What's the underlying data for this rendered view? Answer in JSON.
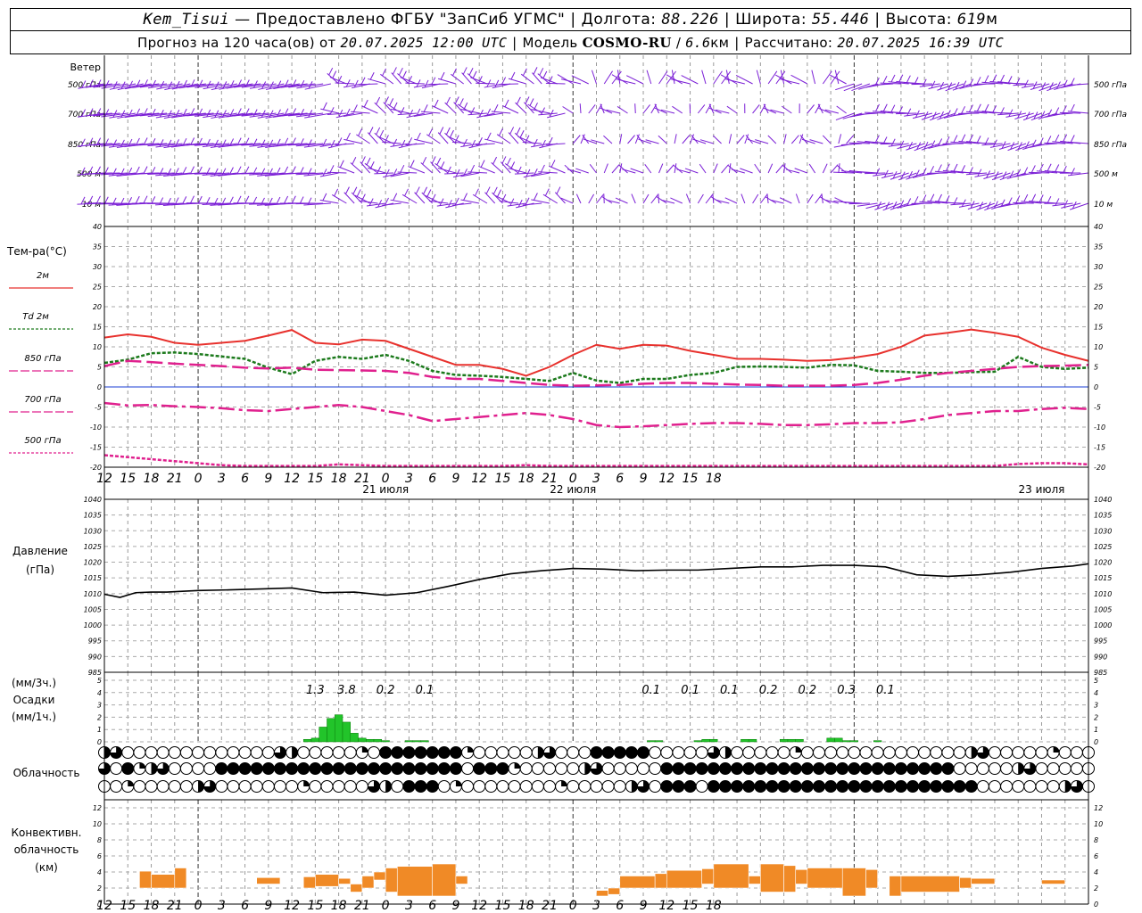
{
  "header": {
    "station": "Kem_Tisui",
    "provided": "Предоставлено ФГБУ \"ЗапСиб УГМС\"",
    "lon_label": "Долгота:",
    "lon": "88.226",
    "lat_label": "Широта:",
    "lat": "55.446",
    "alt_label": "Высота:",
    "alt": "619",
    "alt_unit": "м",
    "forecast_label": "Прогноз на 120 часа(ов) от",
    "forecast_start": "20.07.2025 12:00 UTC",
    "model_label": "Модель",
    "model": "COSMO-RU",
    "resolution": "6.6",
    "res_unit": "км",
    "calc_label": "Рассчитано:",
    "calc_time": "20.07.2025 16:39 UTC"
  },
  "chart_data": [
    {
      "type": "wind_barbs",
      "title": "Ветер",
      "levels": [
        "500 гПа",
        "700 гПа",
        "850 гПа",
        "500 м",
        "10  м"
      ],
      "color": "#7b1fd6"
    },
    {
      "type": "line",
      "title": "Тем-ра(°C)",
      "ylim": [
        -20,
        40
      ],
      "yticks": [
        -20,
        -15,
        -10,
        -5,
        0,
        5,
        10,
        15,
        20,
        25,
        30,
        35,
        40
      ],
      "series": [
        {
          "name": "2м",
          "color": "#e8312d",
          "x": [
            0,
            3,
            6,
            9,
            12,
            15,
            18,
            21,
            24,
            27,
            30,
            33,
            36,
            39,
            42,
            45,
            48,
            51,
            54,
            57,
            60,
            63,
            66,
            69,
            72,
            75,
            78,
            81,
            84,
            87,
            90,
            93,
            96,
            99,
            102,
            105,
            108,
            111,
            114,
            117,
            120,
            123,
            126
          ],
          "values": [
            12.3,
            13.1,
            12.5,
            11,
            10.5,
            11,
            11.5,
            12.8,
            14.2,
            11,
            10.6,
            11.8,
            11.5,
            9.5,
            7.5,
            5.5,
            5.5,
            4.5,
            2.8,
            5,
            8,
            10.5,
            9.5,
            10.5,
            10.3,
            9,
            8,
            7,
            7,
            6.8,
            6.5,
            6.7,
            7.3,
            8.2,
            10,
            12.8,
            13.5,
            14.3,
            13.5,
            12.5,
            9.8,
            8,
            6.5
          ]
        },
        {
          "name": "Td 2м",
          "color": "#1c7a1c",
          "x": [
            0,
            3,
            6,
            9,
            12,
            15,
            18,
            21,
            24,
            27,
            30,
            33,
            36,
            39,
            42,
            45,
            48,
            51,
            54,
            57,
            60,
            63,
            66,
            69,
            72,
            75,
            78,
            81,
            84,
            87,
            90,
            93,
            96,
            99,
            102,
            105,
            108,
            111,
            114,
            117,
            120,
            123,
            126
          ],
          "values": [
            6,
            6.8,
            8.4,
            8.6,
            8.2,
            7.6,
            7,
            4.8,
            3.2,
            6.5,
            7.5,
            7,
            8,
            6.5,
            4,
            3,
            2.8,
            2.5,
            2,
            1.5,
            3.5,
            1.6,
            1,
            2,
            2,
            3,
            3.5,
            5,
            5.1,
            5,
            4.8,
            5.5,
            5.4,
            4,
            3.8,
            3.5,
            3.5,
            3.7,
            3.8,
            7.5,
            5,
            4.5,
            4.8
          ]
        },
        {
          "name": "850 гПа",
          "color": "#e0208e",
          "x": [
            0,
            3,
            6,
            9,
            12,
            15,
            18,
            21,
            24,
            27,
            30,
            33,
            36,
            39,
            42,
            45,
            48,
            51,
            54,
            57,
            60,
            63,
            66,
            69,
            72,
            75,
            78,
            81,
            84,
            87,
            90,
            93,
            96,
            99,
            102,
            105,
            108,
            111,
            114,
            117,
            120,
            123,
            126
          ],
          "values": [
            5.2,
            6.5,
            6.2,
            5.8,
            5.5,
            5.2,
            4.8,
            4.6,
            4.8,
            4.3,
            4.2,
            4.1,
            4,
            3.5,
            2.5,
            2,
            2,
            1.5,
            1,
            0.5,
            0.3,
            0.4,
            0.5,
            0.8,
            1,
            1,
            0.8,
            0.6,
            0.5,
            0.3,
            0.3,
            0.3,
            0.5,
            1,
            1.8,
            2.8,
            3.5,
            4,
            4.5,
            5,
            5.2,
            5.3,
            5.5
          ]
        },
        {
          "name": "700 гПа",
          "color": "#e0208e",
          "x": [
            0,
            3,
            6,
            9,
            12,
            15,
            18,
            21,
            24,
            27,
            30,
            33,
            36,
            39,
            42,
            45,
            48,
            51,
            54,
            57,
            60,
            63,
            66,
            69,
            72,
            75,
            78,
            81,
            84,
            87,
            90,
            93,
            96,
            99,
            102,
            105,
            108,
            111,
            114,
            117,
            120,
            123,
            126
          ],
          "values": [
            -4,
            -4.6,
            -4.5,
            -4.8,
            -5,
            -5.3,
            -5.8,
            -6,
            -5.5,
            -5,
            -4.5,
            -5,
            -6,
            -7,
            -8.5,
            -8,
            -7.5,
            -7,
            -6.5,
            -7,
            -8,
            -9.5,
            -10,
            -9.8,
            -9.5,
            -9.2,
            -9,
            -9,
            -9.2,
            -9.5,
            -9.5,
            -9.3,
            -9,
            -9,
            -8.8,
            -8,
            -7,
            -6.5,
            -6,
            -6,
            -5.5,
            -5.2,
            -5.5
          ]
        },
        {
          "name": "500 гПа",
          "color": "#e0208e",
          "x": [
            0,
            3,
            6,
            9,
            12,
            15,
            18,
            21,
            24,
            27,
            30,
            33,
            36,
            39,
            42,
            45,
            48,
            51,
            54,
            57,
            60,
            63,
            66,
            69,
            72,
            75,
            78,
            81,
            84,
            87,
            90,
            93,
            96,
            99,
            102,
            105,
            108,
            111,
            114,
            117,
            120,
            123,
            126
          ],
          "values": [
            -17,
            -17.5,
            -18,
            -18.5,
            -19,
            -19.5,
            -19.8,
            -20.5,
            -21,
            -20.5,
            -19.3,
            -19.5,
            -21,
            -22,
            -22,
            -21.5,
            -21,
            -20.5,
            -19.5,
            -19.8,
            -21,
            -21.5,
            -21.5,
            -21.5,
            -21.5,
            -21.5,
            -21.5,
            -21.5,
            -21.5,
            -21.5,
            -21.5,
            -21.5,
            -21.5,
            -21.5,
            -21.5,
            -21.5,
            -20.5,
            -20,
            -19.8,
            -19.2,
            -19,
            -19,
            -19.3
          ]
        }
      ],
      "zero_line_color": "#1a3dd6"
    },
    {
      "type": "line",
      "title": "Давление",
      "unit": "(гПа)",
      "ylim": [
        985,
        1040
      ],
      "yticks": [
        985,
        990,
        995,
        1000,
        1005,
        1010,
        1015,
        1020,
        1025,
        1030,
        1035,
        1040
      ],
      "series": [
        {
          "color": "#000000",
          "x": [
            0,
            2,
            4,
            6,
            8,
            12,
            16,
            20,
            24,
            28,
            32,
            36,
            40,
            44,
            48,
            52,
            56,
            60,
            64,
            68,
            72,
            76,
            80,
            84,
            88,
            92,
            96,
            100,
            104,
            108,
            112,
            116,
            120,
            124,
            126
          ],
          "values": [
            1009.8,
            1008.8,
            1010.3,
            1010.5,
            1010.5,
            1011,
            1011.2,
            1011.5,
            1011.8,
            1010.3,
            1010.5,
            1009.5,
            1010.3,
            1012.3,
            1014.5,
            1016.3,
            1017.3,
            1018,
            1017.8,
            1017.3,
            1017.5,
            1017.5,
            1018,
            1018.5,
            1018.5,
            1019,
            1019,
            1018.5,
            1016,
            1015.5,
            1016,
            1016.8,
            1018,
            1018.8,
            1019.5
          ]
        }
      ]
    },
    {
      "type": "bar",
      "title": "Осадки",
      "units": [
        "(мм/3ч.)",
        "(мм/1ч.)"
      ],
      "ylim": [
        0,
        5
      ],
      "yticks": [
        0,
        1,
        2,
        3,
        4,
        5
      ],
      "color": "#22c42a",
      "labels": [
        {
          "x": 27,
          "text": "1.3"
        },
        {
          "x": 31,
          "text": "3.8"
        },
        {
          "x": 36,
          "text": "0.2"
        },
        {
          "x": 41,
          "text": "0.1"
        },
        {
          "x": 70,
          "text": "0.1"
        },
        {
          "x": 75,
          "text": "0.1"
        },
        {
          "x": 80,
          "text": "0.1"
        },
        {
          "x": 85,
          "text": "0.2"
        },
        {
          "x": 90,
          "text": "0.2"
        },
        {
          "x": 95,
          "text": "0.3"
        },
        {
          "x": 100,
          "text": "0.1"
        }
      ],
      "x": [
        26,
        27,
        28,
        29,
        30,
        31,
        32,
        33,
        34,
        35,
        36,
        39,
        40,
        41,
        70,
        71,
        76,
        77,
        78,
        82,
        83,
        87,
        88,
        89,
        93,
        94,
        95,
        96,
        99
      ],
      "values": [
        0.2,
        0.3,
        1.2,
        1.9,
        2.2,
        1.6,
        0.7,
        0.3,
        0.2,
        0.2,
        0.1,
        0.1,
        0.1,
        0.1,
        0.1,
        0.1,
        0.1,
        0.2,
        0.2,
        0.2,
        0.2,
        0.2,
        0.2,
        0.2,
        0.3,
        0.3,
        0.1,
        0.1,
        0.1
      ]
    },
    {
      "type": "cloud_cover",
      "title": "Облачность",
      "rows": [
        "high",
        "middle",
        "low"
      ],
      "step_hours": 1.5
    },
    {
      "type": "bar",
      "title": "Конвективн. облачность",
      "unit": "(км)",
      "ylim": [
        0,
        13
      ],
      "yticks": [
        0,
        2,
        4,
        6,
        8,
        10,
        12
      ],
      "color": "#f08a26",
      "segments": [
        {
          "x0": 4.5,
          "x1": 6,
          "base": 2,
          "top": 4.1
        },
        {
          "x0": 6,
          "x1": 9,
          "base": 2,
          "top": 3.7
        },
        {
          "x0": 9,
          "x1": 10.5,
          "base": 2,
          "top": 4.5
        },
        {
          "x0": 19.5,
          "x1": 22.5,
          "base": 2.5,
          "top": 3.3
        },
        {
          "x0": 25.5,
          "x1": 27,
          "base": 2,
          "top": 3.4
        },
        {
          "x0": 27,
          "x1": 30,
          "base": 2.2,
          "top": 3.7
        },
        {
          "x0": 30,
          "x1": 31.5,
          "base": 2.5,
          "top": 3.2
        },
        {
          "x0": 31.5,
          "x1": 33,
          "base": 1.5,
          "top": 2.5
        },
        {
          "x0": 33,
          "x1": 34.5,
          "base": 2,
          "top": 3.5
        },
        {
          "x0": 34.5,
          "x1": 36,
          "base": 3,
          "top": 4
        },
        {
          "x0": 36,
          "x1": 37.5,
          "base": 1.5,
          "top": 4.5
        },
        {
          "x0": 37.5,
          "x1": 42,
          "base": 1,
          "top": 4.7
        },
        {
          "x0": 42,
          "x1": 45,
          "base": 1,
          "top": 5
        },
        {
          "x0": 45,
          "x1": 46.5,
          "base": 2.5,
          "top": 3.5
        },
        {
          "x0": 63,
          "x1": 64.5,
          "base": 1,
          "top": 1.7
        },
        {
          "x0": 64.5,
          "x1": 66,
          "base": 1.2,
          "top": 2
        },
        {
          "x0": 66,
          "x1": 70.5,
          "base": 2,
          "top": 3.5
        },
        {
          "x0": 70.5,
          "x1": 72,
          "base": 2,
          "top": 3.8
        },
        {
          "x0": 72,
          "x1": 76.5,
          "base": 2,
          "top": 4.2
        },
        {
          "x0": 76.5,
          "x1": 78,
          "base": 2.5,
          "top": 4.4
        },
        {
          "x0": 78,
          "x1": 82.5,
          "base": 2,
          "top": 5
        },
        {
          "x0": 82.5,
          "x1": 84,
          "base": 2.5,
          "top": 3.5
        },
        {
          "x0": 84,
          "x1": 87,
          "base": 1.5,
          "top": 5
        },
        {
          "x0": 87,
          "x1": 88.5,
          "base": 1.5,
          "top": 4.8
        },
        {
          "x0": 88.5,
          "x1": 90,
          "base": 2.5,
          "top": 4.3
        },
        {
          "x0": 90,
          "x1": 94.5,
          "base": 2,
          "top": 4.5
        },
        {
          "x0": 94.5,
          "x1": 97.5,
          "base": 1,
          "top": 4.5
        },
        {
          "x0": 97.5,
          "x1": 99,
          "base": 2,
          "top": 4.3
        },
        {
          "x0": 100.5,
          "x1": 102,
          "base": 1,
          "top": 3.5
        },
        {
          "x0": 102,
          "x1": 109.5,
          "base": 1.5,
          "top": 3.5
        },
        {
          "x0": 109.5,
          "x1": 111,
          "base": 2,
          "top": 3.3
        },
        {
          "x0": 111,
          "x1": 114,
          "base": 2.5,
          "top": 3.2
        },
        {
          "x0": 120,
          "x1": 123,
          "base": 2.5,
          "top": 3
        }
      ]
    }
  ],
  "time_axis": {
    "hour_labels": [
      "12",
      "15",
      "18",
      "21",
      "0",
      "3",
      "6",
      "9",
      "12",
      "15",
      "18",
      "21",
      "0",
      "3",
      "6",
      "9",
      "12",
      "15",
      "18",
      "21",
      "0",
      "3",
      "6",
      "9",
      "12",
      "15",
      "18"
    ],
    "dates": [
      {
        "hour": 36,
        "label": "21 июля"
      },
      {
        "hour": 60,
        "label": "22 июля"
      },
      {
        "hour": 120,
        "label": "23 июля"
      }
    ]
  }
}
